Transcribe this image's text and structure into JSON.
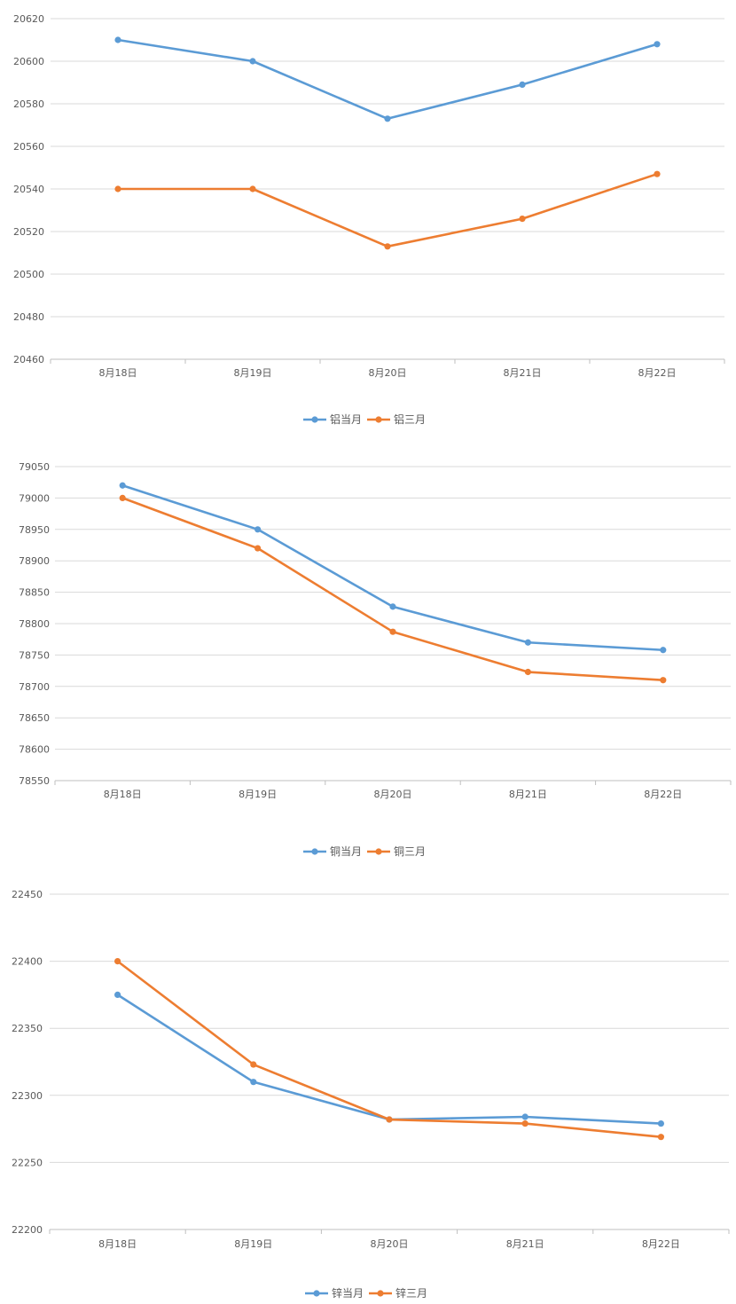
{
  "chart_data": [
    {
      "type": "line",
      "categories": [
        "8月18日",
        "8月19日",
        "8月20日",
        "8月21日",
        "8月22日"
      ],
      "series": [
        {
          "name": "铝当月",
          "color": "#5b9bd5",
          "values": [
            20610,
            20600,
            20573,
            20589,
            20608
          ]
        },
        {
          "name": "铝三月",
          "color": "#ed7d31",
          "values": [
            20540,
            20540,
            20513,
            20526,
            20547
          ]
        }
      ],
      "yticks": [
        20460,
        20480,
        20500,
        20520,
        20540,
        20560,
        20580,
        20600,
        20620
      ],
      "ylim": [
        20460,
        20620
      ],
      "grid": true,
      "legend": "bottom"
    },
    {
      "type": "line",
      "categories": [
        "8月18日",
        "8月19日",
        "8月20日",
        "8月21日",
        "8月22日"
      ],
      "series": [
        {
          "name": "铜当月",
          "color": "#5b9bd5",
          "values": [
            79020,
            78950,
            78827,
            78770,
            78758
          ]
        },
        {
          "name": "铜三月",
          "color": "#ed7d31",
          "values": [
            79000,
            78920,
            78787,
            78723,
            78710
          ]
        }
      ],
      "yticks": [
        78550,
        78600,
        78650,
        78700,
        78750,
        78800,
        78850,
        78900,
        78950,
        79000,
        79050
      ],
      "ylim": [
        78550,
        79050
      ],
      "grid": true,
      "legend": "bottom"
    },
    {
      "type": "line",
      "categories": [
        "8月18日",
        "8月19日",
        "8月20日",
        "8月21日",
        "8月22日"
      ],
      "series": [
        {
          "name": "锌当月",
          "color": "#5b9bd5",
          "values": [
            22375,
            22310,
            22282,
            22284,
            22279
          ]
        },
        {
          "name": "锌三月",
          "color": "#ed7d31",
          "values": [
            22400,
            22323,
            22282,
            22279,
            22269
          ]
        }
      ],
      "yticks": [
        22200,
        22250,
        22300,
        22350,
        22400,
        22450
      ],
      "ylim": [
        22200,
        22450
      ],
      "grid": true,
      "legend": "bottom"
    }
  ]
}
